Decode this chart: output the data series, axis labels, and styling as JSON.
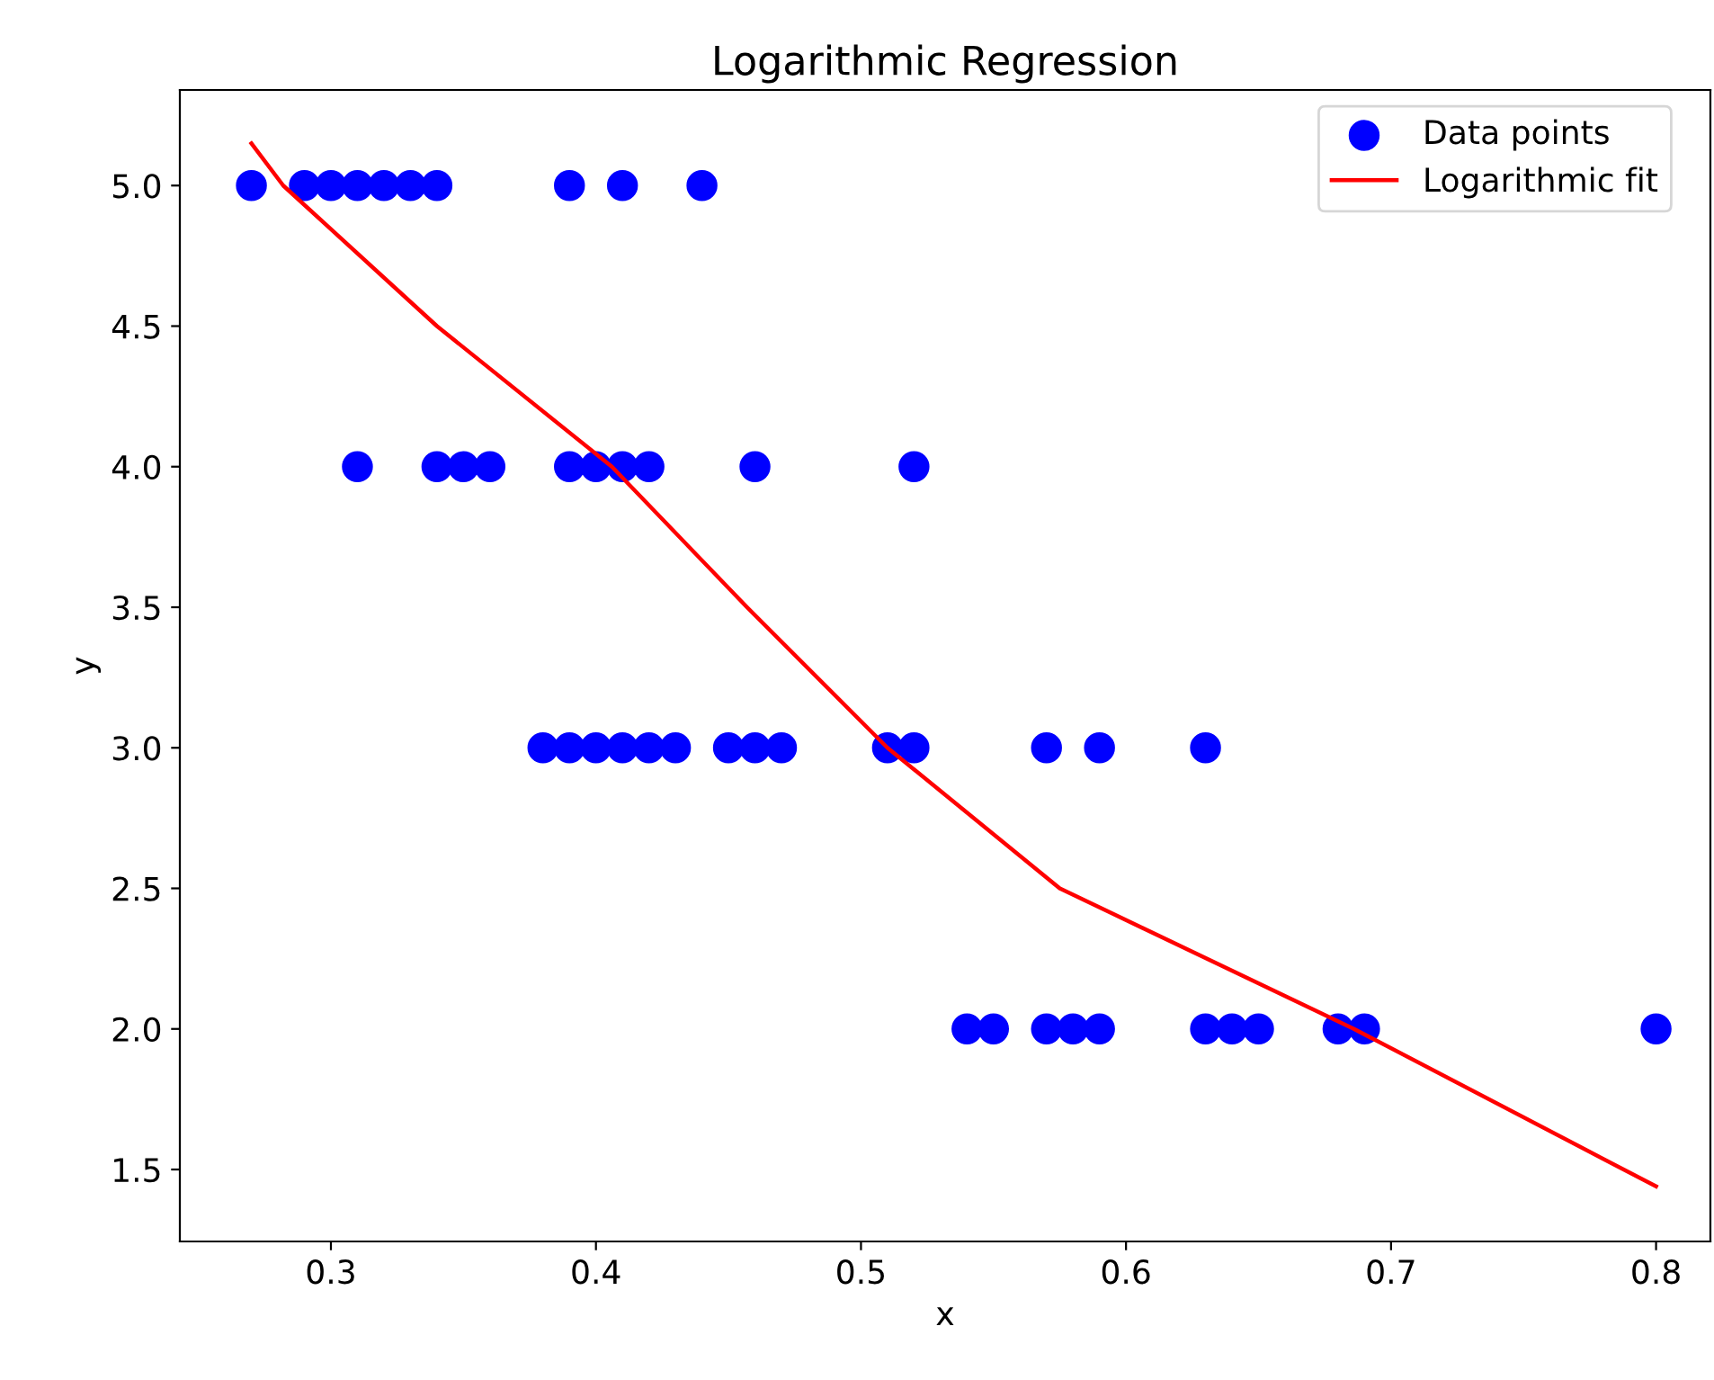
{
  "chart_data": {
    "type": "scatter",
    "title": "Logarithmic Regression",
    "xlabel": "x",
    "ylabel": "y",
    "xlim": [
      0.243,
      0.8205
    ],
    "ylim": [
      1.244,
      5.34
    ],
    "xticks": [
      {
        "value": 0.3,
        "label": "0.3"
      },
      {
        "value": 0.4,
        "label": "0.4"
      },
      {
        "value": 0.5,
        "label": "0.5"
      },
      {
        "value": 0.6,
        "label": "0.6"
      },
      {
        "value": 0.7,
        "label": "0.7"
      },
      {
        "value": 0.8,
        "label": "0.8"
      }
    ],
    "yticks": [
      {
        "value": 1.5,
        "label": "1.5"
      },
      {
        "value": 2.0,
        "label": "2.0"
      },
      {
        "value": 2.5,
        "label": "2.5"
      },
      {
        "value": 3.0,
        "label": "3.0"
      },
      {
        "value": 3.5,
        "label": "3.5"
      },
      {
        "value": 4.0,
        "label": "4.0"
      },
      {
        "value": 4.5,
        "label": "4.5"
      },
      {
        "value": 5.0,
        "label": "5.0"
      }
    ],
    "grid": false,
    "legend": "top right",
    "series": [
      {
        "name": "Data points",
        "color": "#0000ff",
        "marker": "circle",
        "x": [
          0.27,
          0.29,
          0.3,
          0.31,
          0.32,
          0.33,
          0.34,
          0.39,
          0.41,
          0.44,
          0.31,
          0.34,
          0.35,
          0.36,
          0.39,
          0.4,
          0.41,
          0.42,
          0.46,
          0.52,
          0.38,
          0.39,
          0.4,
          0.41,
          0.42,
          0.43,
          0.45,
          0.46,
          0.47,
          0.51,
          0.52,
          0.57,
          0.59,
          0.63,
          0.54,
          0.55,
          0.57,
          0.58,
          0.59,
          0.63,
          0.64,
          0.65,
          0.68,
          0.69,
          0.8
        ],
        "values": [
          5,
          5,
          5,
          5,
          5,
          5,
          5,
          5,
          5,
          5,
          4,
          4,
          4,
          4,
          4,
          4,
          4,
          4,
          4,
          4,
          3,
          3,
          3,
          3,
          3,
          3,
          3,
          3,
          3,
          3,
          3,
          3,
          3,
          3,
          2,
          2,
          2,
          2,
          2,
          2,
          2,
          2,
          2,
          2,
          2
        ]
      },
      {
        "name": "Logarithmic fit",
        "type": "line",
        "color": "#ff0000",
        "marker": "none",
        "line_style": "solid",
        "x": [
          0.27,
          0.282,
          0.34,
          0.406,
          0.457,
          0.51,
          0.575,
          0.686,
          0.8
        ],
        "values": [
          5.15,
          5.0,
          4.5,
          4.0,
          3.5,
          3.0,
          2.5,
          2.0,
          1.44
        ]
      }
    ]
  }
}
